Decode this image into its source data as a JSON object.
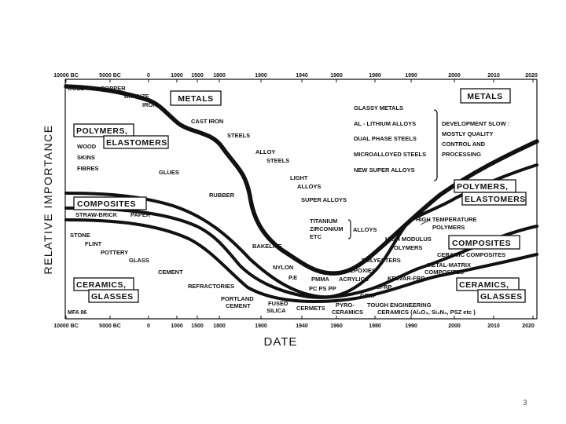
{
  "figure": {
    "xlabel": "DATE",
    "ylabel": "RELATIVE IMPORTANCE",
    "credit": "MFA 86",
    "top_ticks": [
      "10000 BC",
      "5000 BC",
      "0",
      "1000",
      "1500",
      "1800",
      "1900",
      "1940",
      "1960",
      "1980",
      "1990",
      "2000",
      "2010",
      "2020"
    ],
    "bottom_ticks": [
      "10000 BC",
      "5000 BC",
      "0",
      "1000",
      "1500",
      "1800",
      "1900",
      "1940",
      "1960",
      "1980",
      "1990",
      "2000",
      "2010",
      "2020"
    ],
    "curves": [
      "metals",
      "polymers-elastomers",
      "composites",
      "ceramics-glasses"
    ],
    "boxes": {
      "metals_left": "METALS",
      "metals_right": "METALS",
      "polymers_left_1": "POLYMERS,",
      "polymers_left_2": "ELASTOMERS",
      "polymers_right_1": "POLYMERS,",
      "polymers_right_2": "ELASTOMERS",
      "composites_left": "COMPOSITES",
      "composites_right": "COMPOSITES",
      "ceramics_left_1": "CERAMICS,",
      "ceramics_left_2": "GLASSES",
      "ceramics_right_1": "CERAMICS,",
      "ceramics_right_2": "GLASSES"
    },
    "labels": {
      "gold": "GOLD",
      "copper": "COPPER",
      "bronze": "BRONZE",
      "iron": "IRON",
      "cast_iron": "CAST IRON",
      "steels": "STEELS",
      "alloy_steels_1": "ALLOY",
      "alloy_steels_2": "STEELS",
      "light_alloys_1": "LIGHT",
      "light_alloys_2": "ALLOYS",
      "super_alloys": "SUPER ALLOYS",
      "titanium": "TITANIUM",
      "zirconium": "ZIRCONIUM",
      "etc": "ETC",
      "alloys_bracket": "ALLOYS",
      "wood": "WOOD",
      "skins": "SKINS",
      "fibres": "FIBRES",
      "glues": "GLUES",
      "rubber": "RUBBER",
      "straw_brick": "STRAW-BRICK",
      "paper": "PAPER",
      "stone": "STONE",
      "flint": "FLINT",
      "pottery": "POTTERY",
      "glass": "GLASS",
      "cement": "CEMENT",
      "refractories": "REFRACTORIES",
      "portland_1": "PORTLAND",
      "portland_2": "CEMENT",
      "bakelite": "BAKELITE",
      "nylon": "NYLON",
      "pe": "P.E",
      "pmma": "PMMA",
      "acrylics": "ACRYLICS",
      "pc_ps_pp": "PC   PS   PP",
      "fused_silica_1": "FUSED",
      "fused_silica_2": "SILICA",
      "cermets": "CERMETS",
      "pyro_ceramics_1": "PYRO-",
      "pyro_ceramics_2": "CERAMICS",
      "epoxies": "EPOXIES",
      "polyesters": "POLYESTERS",
      "kevlar_frp": "KELVAR-FRP",
      "cfrp": "CFRP",
      "gfrp": "GFRP",
      "tough_eng_1": "TOUGH ENGINEERING",
      "tough_eng_2": "CERAMICS  (Al₂O₃, Si₃N₄, PSZ etc )",
      "high_modulus_1": "HIGH MODULUS",
      "high_modulus_2": "POLYMERS",
      "high_temp_1": "HIGH TEMPERATURE",
      "high_temp_2": "POLYMERS",
      "metal_matrix_1": "METAL-MATRIX",
      "metal_matrix_2": "COMPOSITES",
      "ceramic_composites": "CERAMIC COMPOSITES",
      "glassy_metals": "GLASSY METALS",
      "al_lithium": "AL - LITHIUM  ALLOYS",
      "dual_phase": "DUAL  PHASE STEELS",
      "microalloyed": "MICROALLOYED STEELS",
      "new_super": "NEW SUPER ALLOYS",
      "dev_slow_1": "DEVELOPMENT SLOW :",
      "dev_slow_2": "MOSTLY QUALITY",
      "dev_slow_3": "CONTROL AND",
      "dev_slow_4": "PROCESSING"
    }
  },
  "page_number": "3"
}
